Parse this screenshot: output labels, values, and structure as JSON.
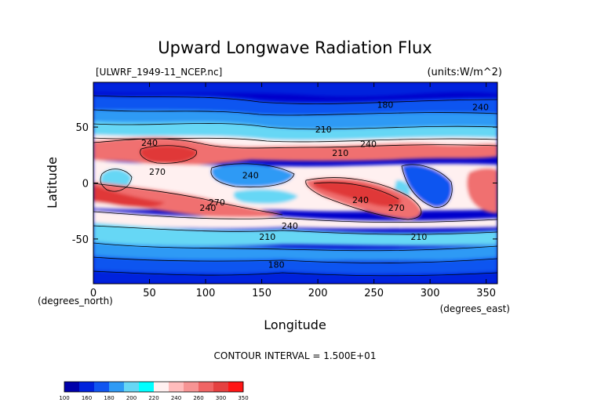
{
  "chart_data": {
    "type": "heatmap",
    "title": "Upward Longwave Radiation Flux",
    "subtitle_left": "[ULWRF_1949-11_NCEP.nc]",
    "subtitle_right": "(units:W/m^2)",
    "xlabel": "Longitude",
    "ylabel": "Latitude",
    "x_unit_label": "(degrees_east)",
    "y_unit_label": "(degrees_north)",
    "xlim": [
      0,
      360
    ],
    "ylim": [
      -90,
      90
    ],
    "x_ticks": [
      0,
      50,
      100,
      150,
      200,
      250,
      300,
      350
    ],
    "y_ticks": [
      -50,
      0,
      50
    ],
    "contour_interval_text": "CONTOUR INTERVAL = 1.500E+01",
    "contour_labels": [
      {
        "text": "180",
        "lon": 260,
        "lat": 70
      },
      {
        "text": "180",
        "lon": 163,
        "lat": -73
      },
      {
        "text": "210",
        "lon": 205,
        "lat": 48
      },
      {
        "text": "210",
        "lon": 155,
        "lat": -48
      },
      {
        "text": "210",
        "lon": 290,
        "lat": -48
      },
      {
        "text": "240",
        "lon": 50,
        "lat": 36
      },
      {
        "text": "240",
        "lon": 140,
        "lat": 7
      },
      {
        "text": "240",
        "lon": 245,
        "lat": 35
      },
      {
        "text": "240",
        "lon": 238,
        "lat": -15
      },
      {
        "text": "240",
        "lon": 175,
        "lat": -38
      },
      {
        "text": "240",
        "lon": 102,
        "lat": -22
      },
      {
        "text": "270",
        "lon": 57,
        "lat": 10
      },
      {
        "text": "270",
        "lon": 110,
        "lat": -17
      },
      {
        "text": "270",
        "lon": 270,
        "lat": -22
      },
      {
        "text": "240",
        "lon": 345,
        "lat": 68
      },
      {
        "text": "210",
        "lon": 220,
        "lat": 27
      }
    ],
    "colorbar": {
      "levels": [
        100,
        160,
        180,
        200,
        220,
        240,
        260,
        300,
        350
      ],
      "colors": [
        "#0000aa",
        "#0022dd",
        "#1155f0",
        "#2e9af5",
        "#66d7f5",
        "#00ffff",
        "#fff0f0",
        "#ffbcbc",
        "#f79494",
        "#f06464",
        "#e54040",
        "#ff1515"
      ]
    }
  }
}
